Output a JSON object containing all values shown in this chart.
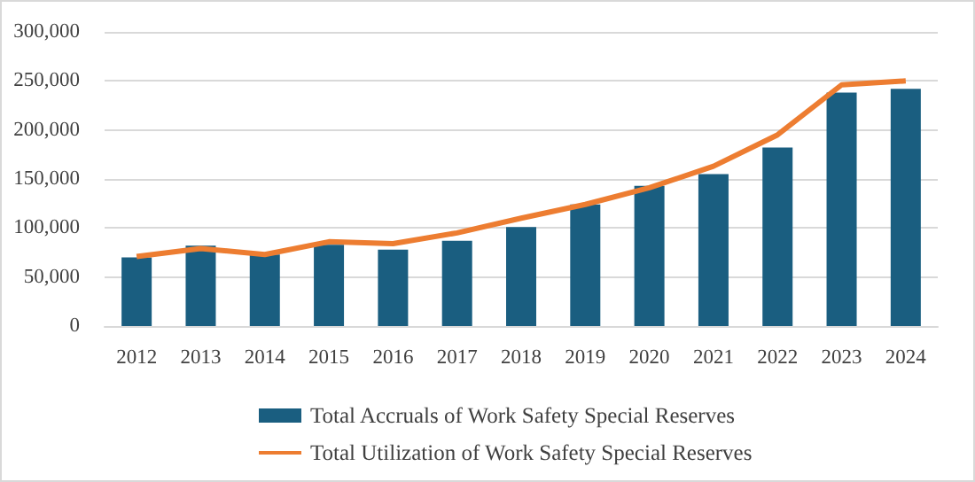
{
  "chart_data": {
    "type": "bar",
    "categories": [
      "2012",
      "2013",
      "2014",
      "2015",
      "2016",
      "2017",
      "2018",
      "2019",
      "2020",
      "2021",
      "2022",
      "2023",
      "2024"
    ],
    "series": [
      {
        "name": "Total Accruals of Work Safety Special Reserves",
        "color": "#1a5e80",
        "values": [
          70000,
          82000,
          73000,
          83000,
          78000,
          87000,
          101000,
          124000,
          143000,
          155000,
          182000,
          238000,
          242000
        ]
      },
      {
        "name": "Total Utilization of Work Safety Special Reserves",
        "type": "line",
        "color": "#ed7d31",
        "values": [
          71000,
          79000,
          73000,
          86000,
          84000,
          95000,
          110000,
          124000,
          141000,
          163000,
          195000,
          246000,
          250000
        ]
      }
    ],
    "ylim": [
      0,
      300000
    ],
    "yticks": [
      0,
      {
        "value": 50000,
        "label": "50,000"
      },
      {
        "value": 100000,
        "label": "100,000"
      },
      {
        "value": 150000,
        "label": "150,000"
      },
      {
        "value": 200000,
        "label": "200,000"
      },
      {
        "value": 250000,
        "label": "250,000"
      },
      {
        "value": 300000,
        "label": "300,000"
      }
    ],
    "grid": "y",
    "legend": "bottom",
    "marker": "none"
  }
}
